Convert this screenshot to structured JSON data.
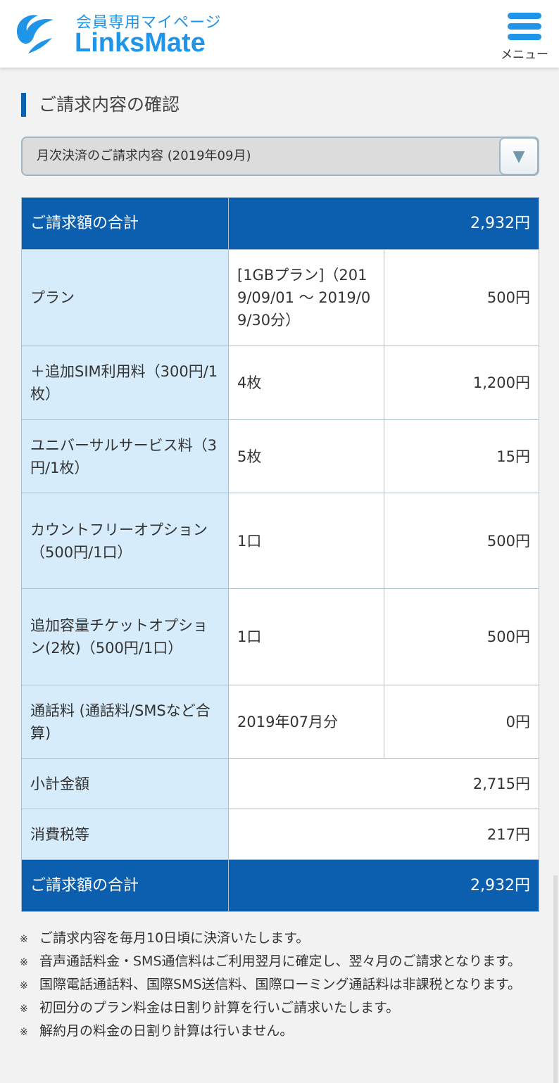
{
  "header": {
    "logo_subtitle": "会員専用マイページ",
    "logo_text": "LinksMate",
    "menu_label": "メニュー"
  },
  "page_title": "ご請求内容の確認",
  "period_select": {
    "value": "月次決済のご請求内容 (2019年09月)"
  },
  "colors": {
    "brand": "#1e95e8",
    "total_row": "#0b5fae",
    "label_cell": "#d6ecfb"
  },
  "table": {
    "total_top": {
      "label": "ご請求額の合計",
      "amount": "2,932円"
    },
    "rows": [
      {
        "label": "プラン",
        "detail": "[1GBプラン]（2019/09/01 〜 2019/09/30分）",
        "amount": "500円"
      },
      {
        "label": "＋追加SIM利用料（300円/1枚）",
        "detail": "4枚",
        "amount": "1,200円"
      },
      {
        "label": "ユニバーサルサービス料（3円/1枚）",
        "detail": "5枚",
        "amount": "15円"
      },
      {
        "label": "カウントフリーオプション（500円/1口）",
        "detail": "1口",
        "amount": "500円"
      },
      {
        "label": "追加容量チケットオプション(2枚)（500円/1口）",
        "detail": "1口",
        "amount": "500円"
      },
      {
        "label": "通話料 (通話料/SMSなど合算)",
        "detail": "2019年07月分",
        "amount": "0円"
      }
    ],
    "subtotal": {
      "label": "小計金額",
      "amount": "2,715円"
    },
    "tax": {
      "label": "消費税等",
      "amount": "217円"
    },
    "total_bottom": {
      "label": "ご請求額の合計",
      "amount": "2,932円"
    }
  },
  "notes": [
    "ご請求内容を毎月10日頃に決済いたします。",
    "音声通話料金・SMS通信料はご利用翌月に確定し、翌々月のご請求となります。",
    "国際電話通話料、国際SMS送信料、国際ローミング通話料は非課税となります。",
    "初回分のプラン料金は日割り計算を行いご請求いたします。",
    "解約月の料金の日割り計算は行いません。"
  ],
  "note_mark": "※"
}
